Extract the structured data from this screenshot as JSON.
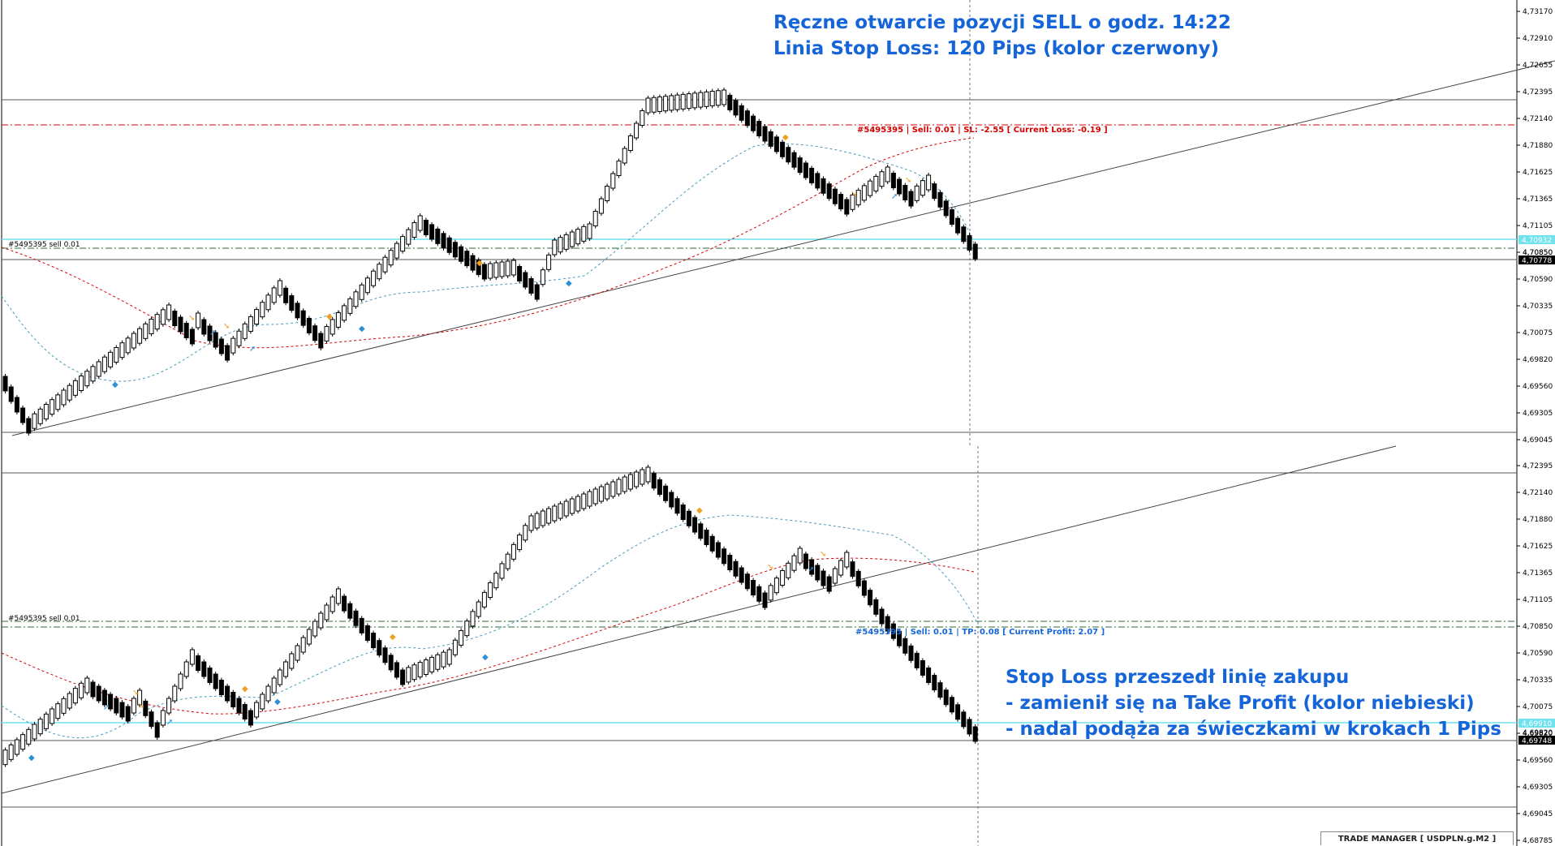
{
  "annotations": {
    "top_line1": "Ręczne otwarcie pozycji SELL o godz. 14:22",
    "top_line2": "Linia Stop Loss: 120 Pips (kolor czerwony)",
    "bottom_line1": "Stop Loss przeszedł linię zakupu",
    "bottom_line2": "- zamienił się na Take Profit (kolor niebieski)",
    "bottom_line3": "- nadal podąża za świeczkami w krokach 1 Pips"
  },
  "top_panel": {
    "order_tag": "#5495395 sell 0.01",
    "order_line_text": "#5495395 | Sell: 0.01 | SL: -2.55 [ Current Loss: -0.19 ]",
    "badge_cyan": "4,70932",
    "badge_black": "4,70778",
    "badge_extra": "4,70850",
    "axis_labels": [
      "4,73170",
      "4,72910",
      "4,72655",
      "4,72395",
      "4,72140",
      "4,71880",
      "4,71625",
      "4,71365",
      "4,71105",
      "4,70850",
      "4,70590",
      "4,70335",
      "4,70075",
      "4,69820",
      "4,69560",
      "4,69305",
      "4,69045"
    ]
  },
  "bottom_panel": {
    "order_tag": "#5495395 sell 0.01",
    "order_line_text": "#5495395 | Sell: 0.01 | TP: 0.08 [ Current Profit: 2.07 ]",
    "badge_cyan": "4,69910",
    "badge_black": "4,69748",
    "badge_extra": "4,69820",
    "axis_labels": [
      "4,72395",
      "4,72140",
      "4,71880",
      "4,71625",
      "4,71365",
      "4,71105",
      "4,70850",
      "4,70590",
      "4,70335",
      "4,70075",
      "4,69820",
      "4,69560",
      "4,69305",
      "4,69045",
      "4,68785"
    ]
  },
  "footer": {
    "label": "TRADE MANAGER [ USDPLN.g.M2 ]"
  },
  "colors": {
    "annotation": "#1565d8",
    "stop_loss": "#d40000",
    "take_profit_line": "#7fe0ec",
    "bull": "#ffffff",
    "bear": "#000000"
  }
}
